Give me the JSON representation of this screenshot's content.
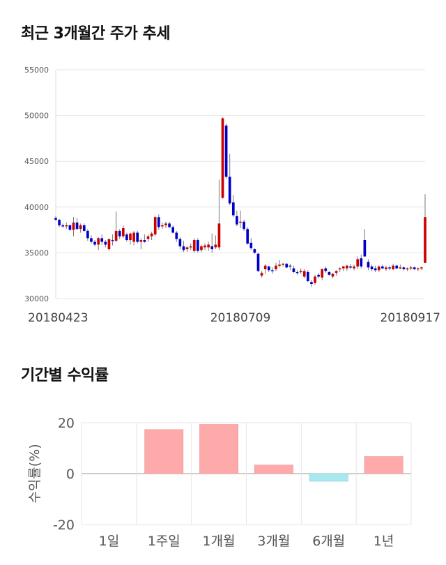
{
  "sections": {
    "price_title": "최근 3개월간 주가 추세",
    "return_title": "기간별 수익률"
  },
  "chart_data": [
    {
      "type": "candlestick",
      "title": "최근 3개월간 주가 추세",
      "ylim": [
        30000,
        55000
      ],
      "yticks": [
        55000,
        50000,
        45000,
        40000,
        35000,
        30000
      ],
      "xtick_labels": [
        {
          "index": 0,
          "label": "20180423"
        },
        {
          "index": 52,
          "label": "20180709"
        },
        {
          "index": 104,
          "label": "20180917"
        }
      ],
      "grid": true,
      "colors": {
        "up": "#cc0000",
        "down": "#0000cc",
        "wick": "#777777",
        "grid": "#e6e6e6"
      },
      "ohlc": [
        [
          38800,
          39000,
          38500,
          38600
        ],
        [
          38600,
          38700,
          37800,
          38000
        ],
        [
          38000,
          38200,
          37700,
          37900
        ],
        [
          37900,
          38300,
          37600,
          38000
        ],
        [
          38000,
          38100,
          37400,
          37500
        ],
        [
          37500,
          38900,
          36800,
          38300
        ],
        [
          38300,
          38800,
          37500,
          37600
        ],
        [
          37600,
          38200,
          37200,
          38000
        ],
        [
          38000,
          38200,
          37300,
          37400
        ],
        [
          37400,
          37600,
          36300,
          36600
        ],
        [
          36600,
          36900,
          36000,
          36200
        ],
        [
          36200,
          36400,
          35700,
          35900
        ],
        [
          35900,
          36700,
          35300,
          36600
        ],
        [
          36600,
          37000,
          35900,
          36200
        ],
        [
          36200,
          36400,
          35600,
          35900
        ],
        [
          35400,
          36500,
          35200,
          36500
        ],
        [
          36400,
          37000,
          35800,
          36300
        ],
        [
          36300,
          39500,
          36200,
          37400
        ],
        [
          37400,
          37600,
          36500,
          36800
        ],
        [
          36800,
          38000,
          36600,
          37700
        ],
        [
          37000,
          37200,
          36200,
          36400
        ],
        [
          36400,
          37200,
          35900,
          37100
        ],
        [
          36200,
          37400,
          35800,
          37200
        ],
        [
          37200,
          37400,
          36000,
          36200
        ],
        [
          36200,
          36600,
          35400,
          36400
        ],
        [
          36400,
          37000,
          36100,
          36200
        ],
        [
          36500,
          37000,
          36200,
          36800
        ],
        [
          36800,
          37300,
          36400,
          37100
        ],
        [
          37000,
          39000,
          36800,
          38900
        ],
        [
          38900,
          39200,
          37500,
          37800
        ],
        [
          38000,
          38300,
          37600,
          38000
        ],
        [
          38000,
          38400,
          37700,
          38200
        ],
        [
          38200,
          38400,
          37700,
          37800
        ],
        [
          37800,
          38000,
          37100,
          37200
        ],
        [
          37200,
          37400,
          36200,
          36500
        ],
        [
          36500,
          36700,
          35400,
          35700
        ],
        [
          35700,
          36300,
          35100,
          35300
        ],
        [
          35400,
          35700,
          35100,
          35600
        ],
        [
          35600,
          36000,
          35300,
          35700
        ],
        [
          35200,
          36600,
          35000,
          36400
        ],
        [
          36400,
          36600,
          35000,
          35200
        ],
        [
          35300,
          35900,
          35100,
          35700
        ],
        [
          35600,
          36000,
          35300,
          35800
        ],
        [
          35600,
          36200,
          35200,
          35900
        ],
        [
          35700,
          37100,
          35000,
          35400
        ],
        [
          35600,
          36900,
          35400,
          35900
        ],
        [
          35600,
          43000,
          35300,
          38200
        ],
        [
          41000,
          49800,
          40900,
          49700
        ],
        [
          48900,
          49100,
          43100,
          43300
        ],
        [
          43300,
          45800,
          40200,
          40400
        ],
        [
          40500,
          41300,
          38900,
          39100
        ],
        [
          39000,
          39600,
          37900,
          38100
        ],
        [
          38300,
          39600,
          37700,
          38400
        ],
        [
          38400,
          38600,
          37400,
          37600
        ],
        [
          37600,
          37800,
          35900,
          36000
        ],
        [
          36100,
          36600,
          35300,
          35500
        ],
        [
          35400,
          35500,
          34900,
          35000
        ],
        [
          34900,
          35000,
          32900,
          33000
        ],
        [
          32500,
          33000,
          32300,
          32800
        ],
        [
          33200,
          33800,
          32700,
          33600
        ],
        [
          33500,
          33600,
          32900,
          33100
        ],
        [
          33100,
          33400,
          32700,
          33000
        ],
        [
          33200,
          33900,
          33000,
          33600
        ],
        [
          33600,
          34200,
          33400,
          33700
        ],
        [
          33700,
          33900,
          33500,
          33800
        ],
        [
          33800,
          33900,
          33300,
          33400
        ],
        [
          33600,
          33800,
          33100,
          33500
        ],
        [
          33300,
          33600,
          32800,
          32900
        ],
        [
          32900,
          33100,
          32600,
          32800
        ],
        [
          32900,
          33300,
          32700,
          33000
        ],
        [
          32400,
          33200,
          32200,
          33000
        ],
        [
          32900,
          33100,
          31800,
          31900
        ],
        [
          31800,
          32000,
          31300,
          31600
        ],
        [
          31700,
          32600,
          31500,
          32400
        ],
        [
          32600,
          32800,
          32200,
          32400
        ],
        [
          32300,
          33300,
          32000,
          33200
        ],
        [
          33300,
          33500,
          32800,
          33000
        ],
        [
          32900,
          33000,
          32500,
          32600
        ],
        [
          32400,
          32800,
          32200,
          32700
        ],
        [
          32800,
          33100,
          32500,
          33000
        ],
        [
          33200,
          33400,
          32900,
          33300
        ],
        [
          33300,
          33600,
          33000,
          33500
        ],
        [
          33300,
          33700,
          33000,
          33600
        ],
        [
          33500,
          33800,
          33200,
          33400
        ],
        [
          33300,
          33700,
          33100,
          33500
        ],
        [
          33500,
          34600,
          33200,
          34300
        ],
        [
          34400,
          34800,
          33300,
          33500
        ],
        [
          36400,
          37600,
          34600,
          34600
        ],
        [
          34000,
          34300,
          33100,
          33400
        ],
        [
          33500,
          33700,
          33000,
          33200
        ],
        [
          33300,
          33600,
          32900,
          33100
        ],
        [
          33100,
          33600,
          32900,
          33500
        ],
        [
          33500,
          33700,
          33200,
          33300
        ],
        [
          33200,
          33600,
          33000,
          33400
        ],
        [
          33400,
          33600,
          33100,
          33300
        ],
        [
          33200,
          33800,
          33100,
          33600
        ],
        [
          33600,
          33700,
          33200,
          33300
        ],
        [
          33300,
          33700,
          33200,
          33400
        ],
        [
          33400,
          33500,
          33100,
          33200
        ],
        [
          33200,
          33400,
          33000,
          33300
        ],
        [
          33300,
          33600,
          33100,
          33400
        ],
        [
          33400,
          33500,
          33100,
          33200
        ],
        [
          33200,
          33400,
          33000,
          33300
        ],
        [
          33300,
          33500,
          33100,
          33400
        ],
        [
          33900,
          41400,
          33900,
          38900
        ]
      ]
    },
    {
      "type": "bar",
      "title": "기간별 수익률",
      "ylabel": "수익률(%)",
      "ylim": [
        -20,
        20
      ],
      "yticks": [
        20,
        0,
        -20
      ],
      "categories": [
        "1일",
        "1주일",
        "1개월",
        "3개월",
        "6개월",
        "1년"
      ],
      "values": [
        0,
        17.3,
        19.3,
        3.4,
        -3.0,
        6.7
      ],
      "grid": true,
      "colors": {
        "positive": "#ffaaaa",
        "negative": "#aae8f0",
        "grid": "#e6e6e6",
        "zero": "#999999"
      }
    }
  ]
}
